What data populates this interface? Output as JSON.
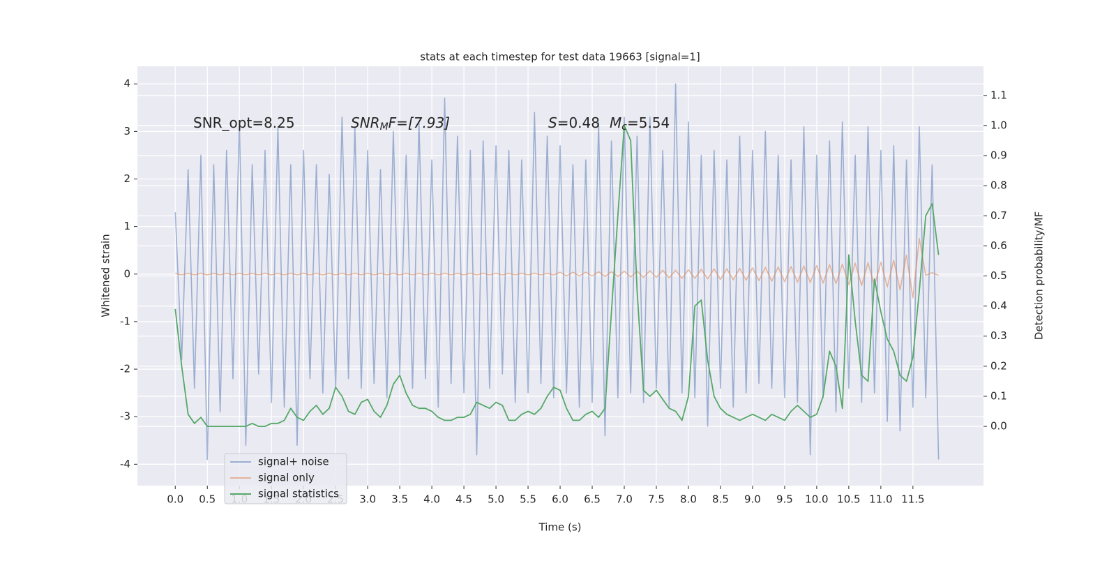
{
  "chart_data": {
    "type": "line",
    "title": "stats at each timestep for test data 19663 [signal=1]",
    "xlabel": "Time (s)",
    "ylabel": "Whitened strain",
    "y2label": "Detection probability/MF",
    "annotations": [
      [
        "SNR_opt=8.25"
      ],
      [
        "SNR",
        "M",
        "F=[7.93]"
      ],
      [
        "S",
        "=0.48",
        "M",
        "c",
        "=5.54"
      ]
    ],
    "xlim": [
      -0.59,
      12.6
    ],
    "ylim": [
      -4.45,
      4.37
    ],
    "y2lim": [
      -0.197,
      1.197
    ],
    "xticks": [
      {
        "value": 0,
        "label": "0.0"
      },
      0.5,
      {
        "value": 1,
        "label": "1.0"
      },
      1.5,
      {
        "value": 2,
        "label": "2.0"
      },
      2.5,
      {
        "value": 3,
        "label": "3.0"
      },
      3.5,
      {
        "value": 4,
        "label": "4.0"
      },
      4.5,
      {
        "value": 5,
        "label": "5.0"
      },
      5.5,
      {
        "value": 6,
        "label": "6.0"
      },
      6.5,
      {
        "value": 7,
        "label": "7.0"
      },
      7.5,
      {
        "value": 8,
        "label": "8.0"
      },
      8.5,
      {
        "value": 9,
        "label": "9.0"
      },
      9.5,
      {
        "value": 10,
        "label": "10.0"
      },
      10.5,
      {
        "value": 11,
        "label": "11.0"
      },
      11.5
    ],
    "yticks": [
      -4,
      -3,
      -2,
      -1,
      0,
      1,
      2,
      3,
      4
    ],
    "y2ticks": [
      {
        "value": 0,
        "label": "0.0"
      },
      0.1,
      0.2,
      0.3,
      0.4,
      0.5,
      0.6,
      0.7,
      0.8,
      0.9,
      {
        "value": 1,
        "label": "1.0"
      },
      1.1
    ],
    "grid": true,
    "legend": "lower left",
    "x": [
      0,
      0.1,
      0.2,
      0.3,
      0.4,
      0.5,
      0.6,
      0.7,
      0.8,
      0.9,
      1,
      1.1,
      1.2,
      1.3,
      1.4,
      1.5,
      1.6,
      1.7,
      1.8,
      1.9,
      2,
      2.1,
      2.2,
      2.3,
      2.4,
      2.5,
      2.6,
      2.7,
      2.8,
      2.9,
      3,
      3.1,
      3.2,
      3.3,
      3.4,
      3.5,
      3.6,
      3.7,
      3.8,
      3.9,
      4,
      4.1,
      4.2,
      4.3,
      4.4,
      4.5,
      4.6,
      4.7,
      4.8,
      4.9,
      5,
      5.1,
      5.2,
      5.3,
      5.4,
      5.5,
      5.6,
      5.7,
      5.8,
      5.9,
      6,
      6.1,
      6.2,
      6.3,
      6.4,
      6.5,
      6.6,
      6.7,
      6.8,
      6.9,
      7,
      7.1,
      7.2,
      7.3,
      7.4,
      7.5,
      7.6,
      7.7,
      7.8,
      7.9,
      8,
      8.1,
      8.2,
      8.3,
      8.4,
      8.5,
      8.6,
      8.7,
      8.8,
      8.9,
      9,
      9.1,
      9.2,
      9.3,
      9.4,
      9.5,
      9.6,
      9.7,
      9.8,
      9.9,
      10,
      10.1,
      10.2,
      10.3,
      10.4,
      10.5,
      10.6,
      10.7,
      10.8,
      10.9,
      11,
      11.1,
      11.2,
      11.3,
      11.4,
      11.5,
      11.6,
      11.7,
      11.8,
      11.9
    ],
    "series": [
      {
        "name": "signal+ noise",
        "color": "#4c72b0",
        "values": [
          1.3,
          -1.8,
          2.2,
          -2.4,
          2.5,
          -3.9,
          2.3,
          -2.9,
          2.6,
          -2.2,
          3.2,
          -3.6,
          2.3,
          -2.1,
          2.6,
          -2.7,
          3.1,
          -2.8,
          2.3,
          -3.6,
          2.6,
          -2.2,
          2.3,
          -2.5,
          2.1,
          -2.4,
          3.3,
          -2.2,
          3.1,
          -2.4,
          2.6,
          -2.3,
          2.2,
          -2.6,
          3.0,
          -2.1,
          2.5,
          -2.4,
          3.2,
          -2.2,
          2.4,
          -2.8,
          3.7,
          -2.3,
          2.9,
          -2.5,
          2.6,
          -3.8,
          2.8,
          -2.4,
          2.7,
          -2.1,
          2.6,
          -2.7,
          2.4,
          -2.5,
          3.4,
          -2.3,
          2.9,
          -2.6,
          2.7,
          -2.5,
          2.3,
          -2.8,
          2.4,
          -2.7,
          3.2,
          -3.4,
          2.8,
          -2.6,
          3.3,
          -2.5,
          2.9,
          -2.7,
          3.3,
          -2.4,
          2.6,
          -2.8,
          4.0,
          -2.5,
          3.2,
          -2.6,
          2.5,
          -3.2,
          2.6,
          -2.4,
          2.4,
          -2.8,
          2.9,
          -2.5,
          2.6,
          -2.3,
          3.0,
          -2.4,
          2.5,
          -2.6,
          2.4,
          -2.7,
          3.1,
          -3.8,
          2.5,
          -2.6,
          2.8,
          -2.9,
          3.2,
          -2.4,
          2.5,
          -2.7,
          3.1,
          -2.5,
          2.6,
          -3.1,
          2.7,
          -3.3,
          2.4,
          -2.8,
          3.1,
          -2.6,
          2.3,
          -3.9
        ]
      },
      {
        "name": "signal only",
        "color": "#dd8452",
        "values": [
          0.02,
          -0.02,
          0.02,
          -0.02,
          0.02,
          -0.02,
          0.02,
          -0.02,
          0.02,
          -0.02,
          0.02,
          -0.02,
          0.02,
          -0.02,
          0.02,
          -0.02,
          0.02,
          -0.02,
          0.02,
          -0.02,
          0.02,
          -0.02,
          0.02,
          -0.02,
          0.02,
          -0.02,
          0.02,
          -0.02,
          0.02,
          -0.02,
          0.02,
          -0.02,
          0.02,
          -0.02,
          0.02,
          -0.02,
          0.02,
          -0.02,
          0.02,
          -0.02,
          0.02,
          -0.02,
          0.02,
          -0.02,
          0.02,
          -0.02,
          0.02,
          -0.02,
          0.02,
          -0.02,
          0.02,
          -0.02,
          0.02,
          -0.02,
          0.02,
          -0.02,
          0.02,
          -0.02,
          0.02,
          -0.02,
          0.04,
          -0.04,
          0.04,
          -0.04,
          0.04,
          -0.04,
          0.05,
          -0.05,
          0.05,
          -0.05,
          0.06,
          -0.06,
          0.06,
          -0.07,
          0.07,
          -0.07,
          0.08,
          -0.08,
          0.08,
          -0.09,
          0.09,
          -0.09,
          0.1,
          -0.1,
          0.11,
          -0.11,
          0.11,
          -0.12,
          0.12,
          -0.13,
          0.13,
          -0.14,
          0.14,
          -0.15,
          0.15,
          -0.16,
          0.16,
          -0.17,
          0.17,
          -0.18,
          0.18,
          -0.19,
          0.2,
          -0.2,
          0.21,
          -0.22,
          0.23,
          -0.24,
          0.24,
          -0.25,
          0.25,
          -0.27,
          0.29,
          -0.33,
          0.4,
          -0.5,
          0.75,
          -0.03,
          0.03,
          -0.03
        ]
      },
      {
        "name": "signal statistics",
        "color": "#55a868",
        "axis": "y2",
        "values": [
          0.39,
          0.2,
          0.04,
          0.01,
          0.03,
          0.0,
          0.0,
          0.0,
          0.0,
          0.0,
          0.0,
          0.0,
          0.01,
          0.0,
          0.0,
          0.01,
          0.01,
          0.02,
          0.06,
          0.03,
          0.02,
          0.05,
          0.07,
          0.04,
          0.06,
          0.13,
          0.1,
          0.05,
          0.04,
          0.08,
          0.09,
          0.05,
          0.03,
          0.07,
          0.14,
          0.17,
          0.11,
          0.07,
          0.06,
          0.06,
          0.05,
          0.03,
          0.02,
          0.02,
          0.03,
          0.03,
          0.04,
          0.08,
          0.07,
          0.06,
          0.08,
          0.07,
          0.02,
          0.02,
          0.04,
          0.05,
          0.04,
          0.06,
          0.1,
          0.13,
          0.12,
          0.06,
          0.02,
          0.02,
          0.04,
          0.05,
          0.03,
          0.06,
          0.38,
          0.7,
          1.0,
          0.95,
          0.45,
          0.12,
          0.1,
          0.12,
          0.09,
          0.06,
          0.05,
          0.02,
          0.1,
          0.4,
          0.42,
          0.22,
          0.1,
          0.06,
          0.04,
          0.03,
          0.02,
          0.03,
          0.04,
          0.03,
          0.02,
          0.04,
          0.03,
          0.02,
          0.05,
          0.07,
          0.05,
          0.03,
          0.04,
          0.1,
          0.25,
          0.2,
          0.06,
          0.57,
          0.35,
          0.17,
          0.15,
          0.49,
          0.38,
          0.29,
          0.25,
          0.17,
          0.15,
          0.23,
          0.45,
          0.7,
          0.74,
          0.57
        ]
      }
    ]
  }
}
